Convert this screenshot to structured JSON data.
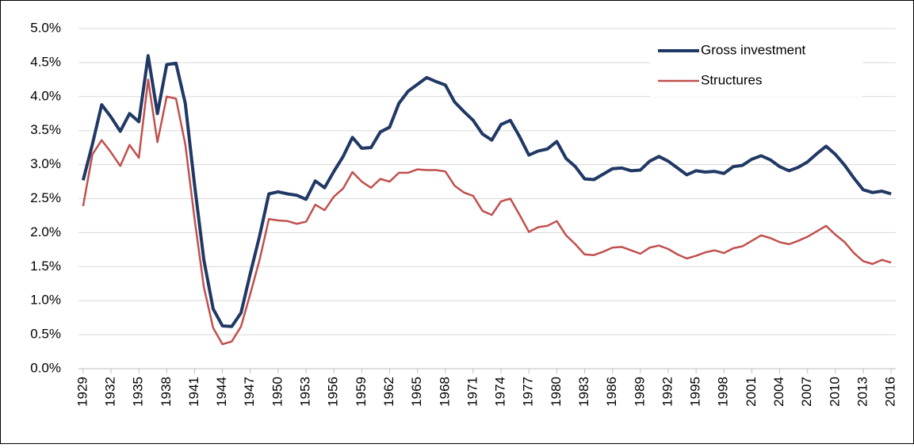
{
  "chart_data": {
    "type": "line",
    "x": [
      1929,
      1930,
      1931,
      1932,
      1933,
      1934,
      1935,
      1936,
      1937,
      1938,
      1939,
      1940,
      1941,
      1942,
      1943,
      1944,
      1945,
      1946,
      1947,
      1948,
      1949,
      1950,
      1951,
      1952,
      1953,
      1954,
      1955,
      1956,
      1957,
      1958,
      1959,
      1960,
      1961,
      1962,
      1963,
      1964,
      1965,
      1966,
      1967,
      1968,
      1969,
      1970,
      1971,
      1972,
      1973,
      1974,
      1975,
      1976,
      1977,
      1978,
      1979,
      1980,
      1981,
      1982,
      1983,
      1984,
      1985,
      1986,
      1987,
      1988,
      1989,
      1990,
      1991,
      1992,
      1993,
      1994,
      1995,
      1996,
      1997,
      1998,
      1999,
      2000,
      2001,
      2002,
      2003,
      2004,
      2005,
      2006,
      2007,
      2008,
      2009,
      2010,
      2011,
      2012,
      2013,
      2014,
      2015,
      2016
    ],
    "series": [
      {
        "name": "Gross investment",
        "color": "#203864",
        "values": [
          2.77,
          3.3,
          3.88,
          3.7,
          3.49,
          3.75,
          3.63,
          4.6,
          3.75,
          4.47,
          4.49,
          3.9,
          2.7,
          1.6,
          0.88,
          0.63,
          0.62,
          0.82,
          1.4,
          1.95,
          2.57,
          2.6,
          2.57,
          2.55,
          2.49,
          2.76,
          2.66,
          2.9,
          3.12,
          3.4,
          3.24,
          3.25,
          3.48,
          3.55,
          3.9,
          4.08,
          4.18,
          4.28,
          4.22,
          4.17,
          3.92,
          3.78,
          3.65,
          3.45,
          3.36,
          3.59,
          3.65,
          3.41,
          3.14,
          3.2,
          3.23,
          3.34,
          3.09,
          2.97,
          2.79,
          2.78,
          2.86,
          2.94,
          2.95,
          2.91,
          2.92,
          3.05,
          3.12,
          3.05,
          2.95,
          2.85,
          2.91,
          2.89,
          2.9,
          2.87,
          2.97,
          2.99,
          3.08,
          3.13,
          3.07,
          2.97,
          2.91,
          2.96,
          3.04,
          3.16,
          3.27,
          3.15,
          2.99,
          2.8,
          2.63,
          2.59,
          2.61,
          2.57
        ]
      },
      {
        "name": "Structures",
        "color": "#c0504d",
        "values": [
          2.39,
          3.15,
          3.36,
          3.18,
          2.98,
          3.29,
          3.1,
          4.25,
          3.33,
          4.0,
          3.97,
          3.3,
          2.2,
          1.2,
          0.6,
          0.36,
          0.4,
          0.62,
          1.1,
          1.6,
          2.2,
          2.18,
          2.17,
          2.13,
          2.16,
          2.41,
          2.33,
          2.53,
          2.65,
          2.89,
          2.75,
          2.66,
          2.79,
          2.75,
          2.88,
          2.88,
          2.93,
          2.92,
          2.92,
          2.9,
          2.69,
          2.59,
          2.54,
          2.32,
          2.26,
          2.46,
          2.5,
          2.26,
          2.01,
          2.08,
          2.1,
          2.17,
          1.96,
          1.83,
          1.68,
          1.67,
          1.72,
          1.78,
          1.79,
          1.74,
          1.69,
          1.78,
          1.81,
          1.76,
          1.68,
          1.62,
          1.66,
          1.71,
          1.74,
          1.7,
          1.77,
          1.8,
          1.88,
          1.96,
          1.92,
          1.86,
          1.83,
          1.88,
          1.94,
          2.02,
          2.1,
          1.97,
          1.86,
          1.7,
          1.58,
          1.54,
          1.6,
          1.56
        ]
      }
    ],
    "xlim": [
      1928.5,
      2016.5
    ],
    "xticks": [
      1929,
      1932,
      1935,
      1938,
      1941,
      1944,
      1947,
      1950,
      1953,
      1956,
      1959,
      1962,
      1965,
      1968,
      1971,
      1974,
      1977,
      1980,
      1983,
      1986,
      1989,
      1992,
      1995,
      1998,
      2001,
      2004,
      2007,
      2010,
      2013,
      2016
    ],
    "ylim": [
      0,
      5
    ],
    "yticks": [
      {
        "value": 0,
        "label": "0.0%"
      },
      {
        "value": 0.5,
        "label": "0.5%"
      },
      {
        "value": 1,
        "label": "1.0%"
      },
      {
        "value": 1.5,
        "label": "1.5%"
      },
      {
        "value": 2,
        "label": "2.0%"
      },
      {
        "value": 2.5,
        "label": "2.5%"
      },
      {
        "value": 3,
        "label": "3.0%"
      },
      {
        "value": 3.5,
        "label": "3.5%"
      },
      {
        "value": 4,
        "label": "4.0%"
      },
      {
        "value": 4.5,
        "label": "4.5%"
      },
      {
        "value": 5,
        "label": "5.0%"
      }
    ],
    "grid": true,
    "legend": "upper right"
  }
}
